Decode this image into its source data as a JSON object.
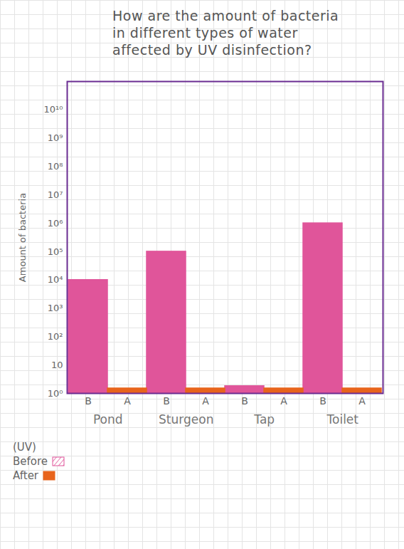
{
  "chart_data": {
    "type": "bar",
    "title": "How are the amount of bacteria in different types of water affected by UV disinfection?",
    "y_label": "Amount of bacteria",
    "categories": [
      "Pond",
      "Sturgeon",
      "Tap",
      "Toilet"
    ],
    "series": [
      {
        "name": "Before",
        "abbreviation": "B",
        "color": "#e0559a",
        "line_style": "hatched",
        "values": [
          10000,
          100000,
          1.8,
          1000000
        ]
      },
      {
        "name": "After",
        "abbreviation": "A",
        "color": "#e8641c",
        "line_style": "solid",
        "values": [
          1.5,
          1.5,
          1.5,
          1.5
        ]
      }
    ],
    "legend_title": "(UV)",
    "legend": "bottom-left",
    "log": "y",
    "ylim": [
      1,
      100000000000
    ],
    "yticks": [
      {
        "value": 1,
        "label": "10⁰"
      },
      10,
      {
        "value": 100,
        "label": "10²"
      },
      {
        "value": 1000,
        "label": "10³"
      },
      {
        "value": 10000,
        "label": "10⁴"
      },
      {
        "value": 100000,
        "label": "10⁵"
      },
      {
        "value": 1000000,
        "label": "10⁶"
      },
      {
        "value": 10000000,
        "label": "10⁷"
      },
      {
        "value": 100000000,
        "label": "10⁸"
      },
      {
        "value": 1000000000,
        "label": "10⁹"
      },
      {
        "value": 10000000000,
        "label": "10¹⁰"
      }
    ],
    "grid": false
  }
}
